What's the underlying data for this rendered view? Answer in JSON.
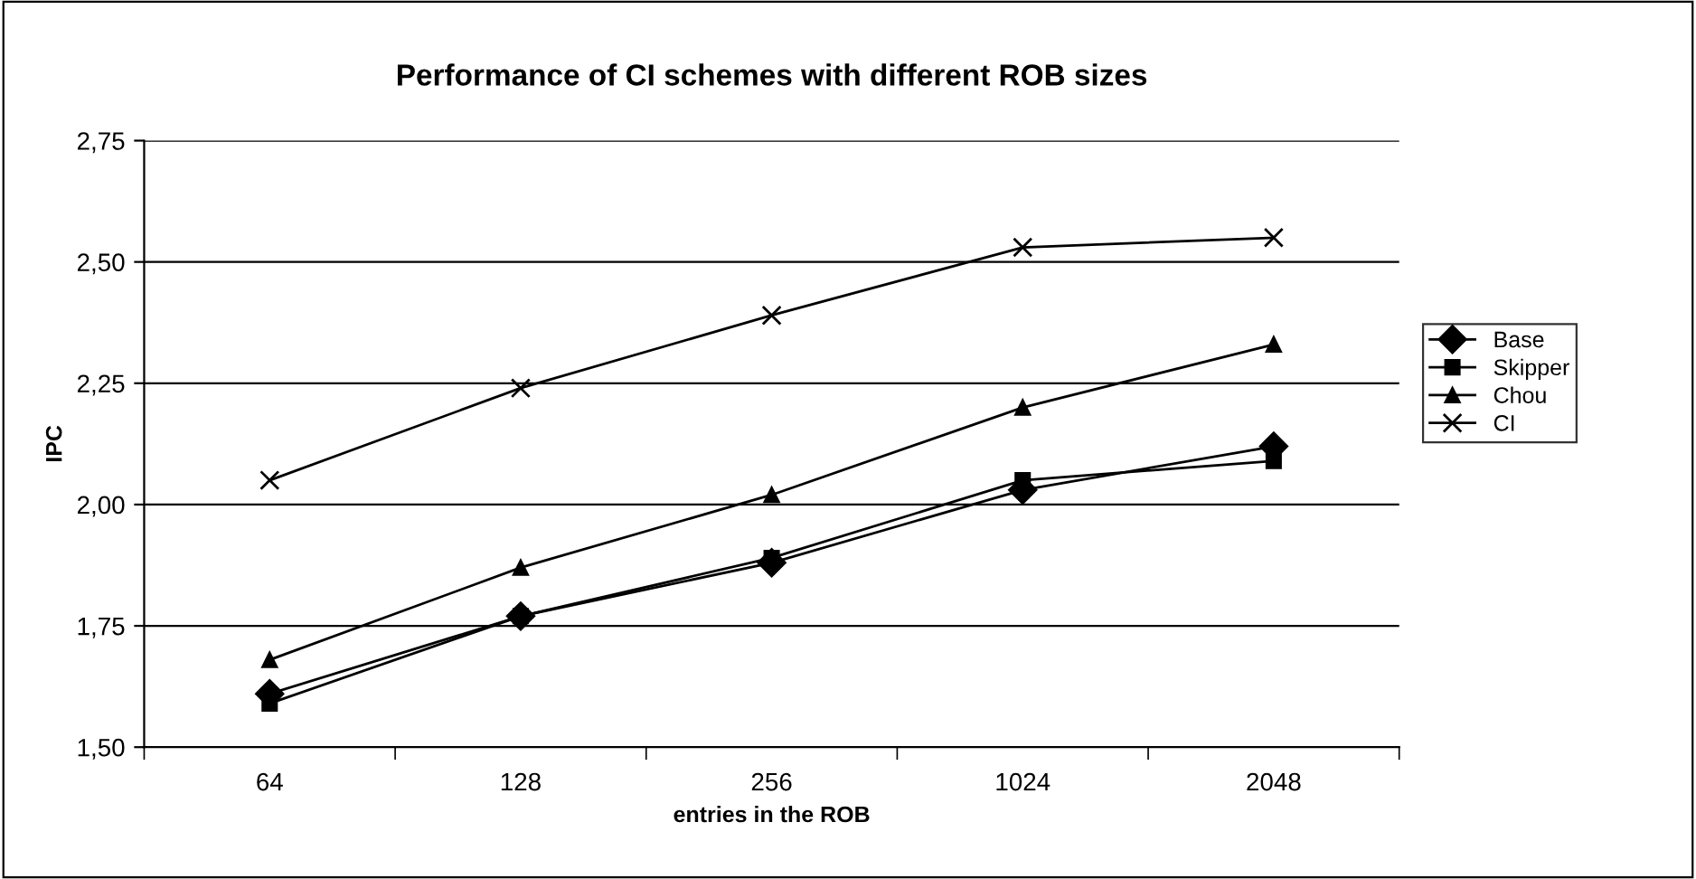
{
  "chart_data": {
    "type": "line",
    "title": "Performance of CI schemes with different ROB sizes",
    "xlabel": "entries in the ROB",
    "ylabel": "IPC",
    "categories": [
      "64",
      "128",
      "256",
      "1024",
      "2048"
    ],
    "series": [
      {
        "name": "Base",
        "color": "#000000",
        "marker": "diamond",
        "values": [
          1.61,
          1.77,
          1.88,
          2.03,
          2.12
        ]
      },
      {
        "name": "Skipper",
        "color": "#000000",
        "marker": "square",
        "values": [
          1.59,
          1.77,
          1.89,
          2.05,
          2.09
        ]
      },
      {
        "name": "Chou",
        "color": "#000000",
        "marker": "triangle",
        "values": [
          1.68,
          1.87,
          2.02,
          2.2,
          2.33
        ]
      },
      {
        "name": "CI",
        "color": "#000000",
        "marker": "cross",
        "values": [
          2.05,
          2.24,
          2.39,
          2.53,
          2.55
        ]
      }
    ],
    "ylim": [
      1.5,
      2.75
    ],
    "yticks": [
      {
        "value": 1.5,
        "label": "1,50"
      },
      {
        "value": 1.75,
        "label": "1,75"
      },
      {
        "value": 2.0,
        "label": "2,00"
      },
      {
        "value": 2.25,
        "label": "2,25"
      },
      {
        "value": 2.5,
        "label": "2,50"
      },
      {
        "value": 2.75,
        "label": "2,75"
      }
    ],
    "grid": "y",
    "legend": "right"
  }
}
